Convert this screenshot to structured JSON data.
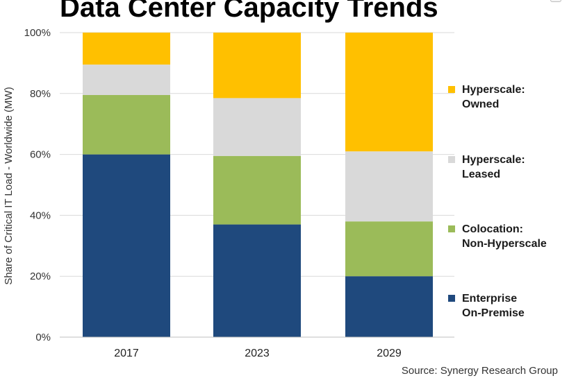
{
  "title": "Data Center Capacity Trends",
  "source": "Source: Synergy  Research Group",
  "chart_data": {
    "type": "bar",
    "stacked": true,
    "title": "Data Center Capacity Trends",
    "xlabel": "",
    "ylabel": "Share of Critical IT Load - Worldwide (MW)",
    "categories": [
      "2017",
      "2023",
      "2029"
    ],
    "ylim": [
      0,
      100
    ],
    "yticks": [
      0,
      20,
      40,
      60,
      80,
      100
    ],
    "ytick_labels": [
      "0%",
      "20%",
      "40%",
      "60%",
      "80%",
      "100%"
    ],
    "grid": true,
    "legend_position": "right",
    "series": [
      {
        "name": "Enterprise On-Premise",
        "label_lines": [
          "Enterprise",
          "On-Premise"
        ],
        "color": "#1f497d",
        "values": [
          60,
          37,
          20
        ]
      },
      {
        "name": "Colocation: Non-Hyperscale",
        "label_lines": [
          "Colocation:",
          "Non-Hyperscale"
        ],
        "color": "#9bbb59",
        "values": [
          19.5,
          22.5,
          18
        ]
      },
      {
        "name": "Hyperscale: Leased",
        "label_lines": [
          "Hyperscale:",
          "Leased"
        ],
        "color": "#d9d9d9",
        "values": [
          10,
          19,
          23
        ]
      },
      {
        "name": "Hyperscale: Owned",
        "label_lines": [
          "Hyperscale:",
          "Owned"
        ],
        "color": "#ffc000",
        "values": [
          10.5,
          21.5,
          39
        ]
      }
    ]
  }
}
